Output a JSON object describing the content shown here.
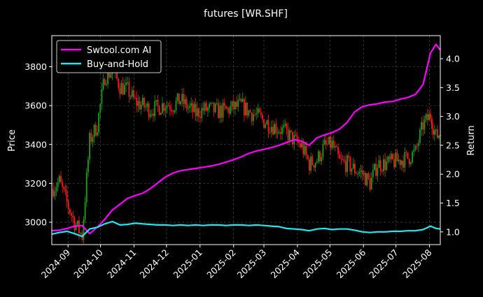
{
  "chart_data": {
    "type": "line",
    "title": "futures [WR.SHF]",
    "ylabel_left": "Price",
    "ylabel_right": "Return",
    "ylim_left": [
      2885,
      3960
    ],
    "ylim_right": [
      0.78,
      4.4
    ],
    "xlim": [
      "2024-08-17",
      "2025-08-11"
    ],
    "grid": true,
    "legend_placement": "top-left",
    "x_ticks": [
      "2024-09",
      "2024-10",
      "2024-11",
      "2024-12",
      "2025-01",
      "2025-02",
      "2025-03",
      "2025-04",
      "2025-05",
      "2025-06",
      "2025-07",
      "2025-08"
    ],
    "y_ticks_left": [
      3000,
      3200,
      3400,
      3600,
      3800
    ],
    "y_ticks_right": [
      "1.0",
      "1.5",
      "2.0",
      "2.5",
      "3.0",
      "3.5",
      "4.0"
    ],
    "series": [
      {
        "name": "Swtool.com AI",
        "color": "#ff00ff",
        "axis": "right",
        "x": [
          "2024-08-17",
          "2024-08-24",
          "2024-08-31",
          "2024-09-07",
          "2024-09-14",
          "2024-09-21",
          "2024-09-28",
          "2024-10-05",
          "2024-10-12",
          "2024-10-19",
          "2024-10-26",
          "2024-11-02",
          "2024-11-09",
          "2024-11-16",
          "2024-11-23",
          "2024-11-30",
          "2024-12-07",
          "2024-12-14",
          "2024-12-21",
          "2024-12-28",
          "2025-01-04",
          "2025-01-11",
          "2025-01-18",
          "2025-01-25",
          "2025-02-01",
          "2025-02-08",
          "2025-02-15",
          "2025-02-22",
          "2025-03-01",
          "2025-03-08",
          "2025-03-15",
          "2025-03-22",
          "2025-03-29",
          "2025-04-05",
          "2025-04-12",
          "2025-04-19",
          "2025-04-26",
          "2025-05-03",
          "2025-05-10",
          "2025-05-17",
          "2025-05-24",
          "2025-05-31",
          "2025-06-07",
          "2025-06-14",
          "2025-06-21",
          "2025-06-28",
          "2025-07-05",
          "2025-07-12",
          "2025-07-19",
          "2025-07-26",
          "2025-08-02",
          "2025-08-07",
          "2025-08-11"
        ],
        "y": [
          1.02,
          1.03,
          1.06,
          1.1,
          1.11,
          0.97,
          1.08,
          1.22,
          1.38,
          1.48,
          1.58,
          1.63,
          1.67,
          1.75,
          1.85,
          1.95,
          2.02,
          2.06,
          2.08,
          2.1,
          2.12,
          2.14,
          2.17,
          2.21,
          2.25,
          2.3,
          2.36,
          2.4,
          2.43,
          2.46,
          2.5,
          2.55,
          2.6,
          2.57,
          2.5,
          2.63,
          2.68,
          2.72,
          2.78,
          2.9,
          3.08,
          3.17,
          3.2,
          3.22,
          3.25,
          3.26,
          3.3,
          3.33,
          3.38,
          3.55,
          4.1,
          4.25,
          4.15
        ]
      },
      {
        "name": "Buy-and-Hold",
        "color": "#22e6f0",
        "axis": "right",
        "x": [
          "2024-08-17",
          "2024-08-24",
          "2024-08-31",
          "2024-09-07",
          "2024-09-14",
          "2024-09-21",
          "2024-09-28",
          "2024-10-05",
          "2024-10-12",
          "2024-10-19",
          "2024-10-26",
          "2024-11-02",
          "2024-11-09",
          "2024-11-16",
          "2024-11-23",
          "2024-11-30",
          "2024-12-07",
          "2024-12-14",
          "2024-12-21",
          "2024-12-28",
          "2025-01-04",
          "2025-01-11",
          "2025-01-18",
          "2025-01-25",
          "2025-02-01",
          "2025-02-08",
          "2025-02-15",
          "2025-02-22",
          "2025-03-01",
          "2025-03-08",
          "2025-03-15",
          "2025-03-22",
          "2025-03-29",
          "2025-04-05",
          "2025-04-12",
          "2025-04-19",
          "2025-04-26",
          "2025-05-03",
          "2025-05-10",
          "2025-05-17",
          "2025-05-24",
          "2025-05-31",
          "2025-06-07",
          "2025-06-14",
          "2025-06-21",
          "2025-06-28",
          "2025-07-05",
          "2025-07-12",
          "2025-07-19",
          "2025-07-26",
          "2025-08-02",
          "2025-08-07",
          "2025-08-11"
        ],
        "y": [
          0.96,
          0.99,
          1.01,
          0.97,
          0.92,
          1.05,
          1.08,
          1.14,
          1.18,
          1.12,
          1.13,
          1.15,
          1.14,
          1.13,
          1.12,
          1.12,
          1.11,
          1.12,
          1.11,
          1.12,
          1.11,
          1.12,
          1.12,
          1.11,
          1.12,
          1.12,
          1.11,
          1.12,
          1.11,
          1.1,
          1.09,
          1.06,
          1.05,
          1.04,
          1.02,
          1.05,
          1.06,
          1.04,
          1.05,
          1.05,
          1.03,
          1.0,
          0.99,
          1.0,
          1.0,
          1.01,
          1.01,
          1.02,
          1.02,
          1.04,
          1.1,
          1.06,
          1.05
        ]
      },
      {
        "name": "price",
        "type": "candlestick",
        "axis": "left",
        "up_color": "#1e9e1e",
        "down_color": "#ff1a1a",
        "x": [
          "2024-08-17",
          "2024-08-24",
          "2024-08-31",
          "2024-09-07",
          "2024-09-14",
          "2024-09-21",
          "2024-09-28",
          "2024-10-05",
          "2024-10-12",
          "2024-10-19",
          "2024-10-26",
          "2024-11-02",
          "2024-11-09",
          "2024-11-16",
          "2024-11-23",
          "2024-11-30",
          "2024-12-07",
          "2024-12-14",
          "2024-12-21",
          "2024-12-28",
          "2025-01-04",
          "2025-01-11",
          "2025-01-18",
          "2025-01-25",
          "2025-02-01",
          "2025-02-08",
          "2025-02-15",
          "2025-02-22",
          "2025-03-01",
          "2025-03-08",
          "2025-03-15",
          "2025-03-22",
          "2025-03-29",
          "2025-04-05",
          "2025-04-12",
          "2025-04-19",
          "2025-04-26",
          "2025-05-03",
          "2025-05-10",
          "2025-05-17",
          "2025-05-24",
          "2025-05-31",
          "2025-06-07",
          "2025-06-14",
          "2025-06-21",
          "2025-06-28",
          "2025-07-05",
          "2025-07-12",
          "2025-07-19",
          "2025-07-26",
          "2025-08-02",
          "2025-08-07",
          "2025-08-11"
        ],
        "y": [
          3170,
          3210,
          3100,
          3000,
          2930,
          3420,
          3500,
          3750,
          3780,
          3700,
          3680,
          3620,
          3600,
          3580,
          3590,
          3610,
          3600,
          3630,
          3590,
          3560,
          3580,
          3580,
          3570,
          3575,
          3590,
          3600,
          3570,
          3550,
          3520,
          3500,
          3480,
          3460,
          3420,
          3390,
          3300,
          3320,
          3390,
          3400,
          3310,
          3300,
          3270,
          3250,
          3200,
          3300,
          3300,
          3310,
          3320,
          3330,
          3360,
          3500,
          3550,
          3440,
          3460
        ]
      }
    ]
  }
}
